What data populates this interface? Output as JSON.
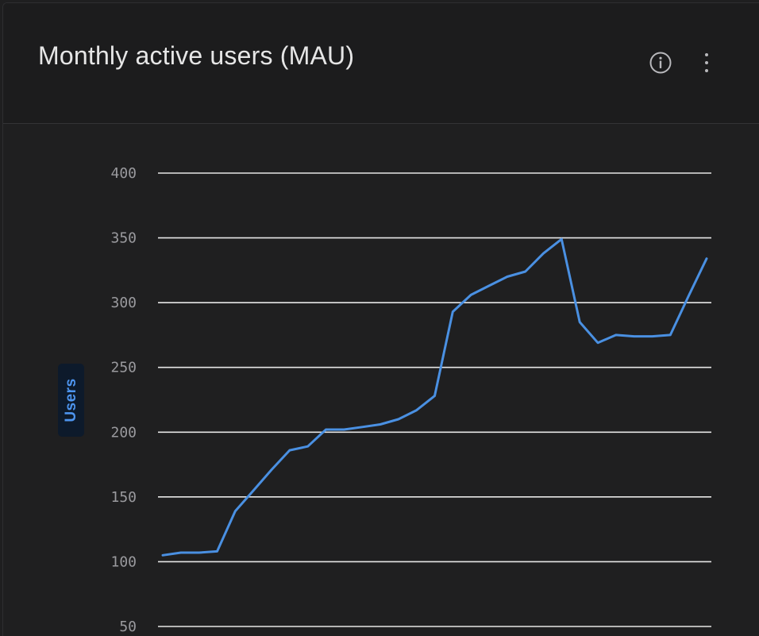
{
  "header": {
    "title": "Monthly active users (MAU)",
    "info_icon": "info-icon",
    "more_icon": "more-vertical-icon"
  },
  "colors": {
    "line": "#4a90e2",
    "grid": "#e6e6e6",
    "tick": "#9a9a9e",
    "ylabel": "#4d94ee"
  },
  "chart_data": {
    "type": "line",
    "title": "Monthly active users (MAU)",
    "xlabel": "",
    "ylabel": "Users",
    "ylim": [
      50,
      400
    ],
    "yticks": [
      400,
      350,
      300,
      250,
      200,
      150,
      100,
      50
    ],
    "grid": true,
    "series": [
      {
        "name": "Users",
        "values": [
          105,
          107,
          107,
          108,
          139,
          155,
          171,
          186,
          189,
          202,
          202,
          204,
          206,
          210,
          217,
          228,
          293,
          306,
          313,
          320,
          324,
          338,
          349,
          285,
          269,
          275,
          274,
          274,
          275,
          305,
          334
        ]
      }
    ]
  }
}
